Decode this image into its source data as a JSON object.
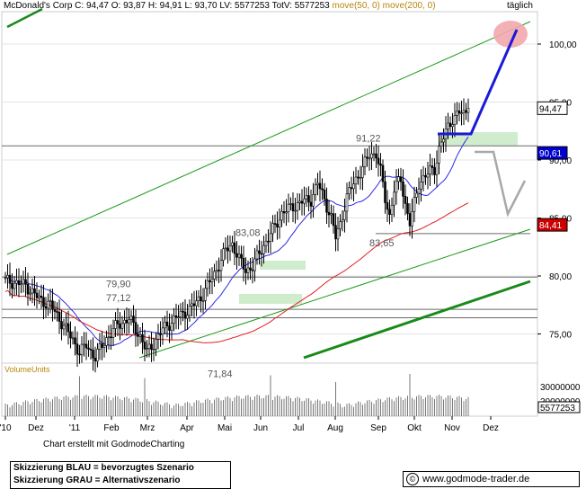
{
  "header": {
    "quote_line": "McDonald's Corp C: 94,47 O: 93,87 H: 94,91 L: 93,70 LV: 5577253 TotV: 5577253",
    "moving_averages": "move(50, 0) move(200, 0)",
    "period": "täglich"
  },
  "chart_data": {
    "type": "candlestick",
    "title": "McDonald's Corp",
    "period": "täglich",
    "x_tick_labels": [
      "'10",
      "Dez",
      "'11",
      "Feb",
      "Mrz",
      "Apr",
      "Mai",
      "Jun",
      "Jul",
      "Aug",
      "Sep",
      "Okt",
      "Nov",
      "Dez"
    ],
    "y_ticks": [
      75,
      80,
      85,
      90,
      95,
      100
    ],
    "y_tick_labels": [
      "75,00",
      "80,00",
      "85,00",
      "90,00",
      "95,00",
      "100,00"
    ],
    "ylim": [
      72,
      102.5
    ],
    "grid": "horizontal",
    "last_close": 94.47,
    "price_tags": [
      {
        "label": "94,47",
        "value": 94.47,
        "color": "#ffffff"
      },
      {
        "label": "90,61",
        "value": 90.61,
        "color": "#0000cc"
      },
      {
        "label": "84,41",
        "value": 84.41,
        "color": "#cc0000"
      }
    ],
    "level_labels": [
      {
        "label": "91,22",
        "value": 91.22
      },
      {
        "label": "83,08",
        "value": 83.08
      },
      {
        "label": "83,65",
        "value": 83.65
      },
      {
        "label": "79,90",
        "value": 79.9
      },
      {
        "label": "77,12",
        "value": 77.12
      },
      {
        "label": "71,84",
        "value": 71.84
      }
    ],
    "horizontal_levels": [
      91.22,
      83.65,
      79.9,
      77.12,
      76.4
    ],
    "price_path": [
      [
        0,
        79.6
      ],
      [
        9,
        79.2
      ],
      [
        15,
        78.0
      ],
      [
        20,
        77.5
      ],
      [
        25,
        76.0
      ],
      [
        30,
        74.5
      ],
      [
        33,
        73.4
      ],
      [
        36,
        74.0
      ],
      [
        40,
        73.0
      ],
      [
        45,
        74.6
      ],
      [
        50,
        75.8
      ],
      [
        55,
        76.3
      ],
      [
        60,
        74.8
      ],
      [
        63,
        73.4
      ],
      [
        66,
        74.2
      ],
      [
        70,
        75.4
      ],
      [
        76,
        76.4
      ],
      [
        82,
        77.1
      ],
      [
        88,
        78.4
      ],
      [
        93,
        80.2
      ],
      [
        98,
        82.2
      ],
      [
        101,
        82.8
      ],
      [
        104,
        81.4
      ],
      [
        107,
        80.5
      ],
      [
        110,
        80.8
      ],
      [
        113,
        82.0
      ],
      [
        118,
        83.6
      ],
      [
        123,
        85.4
      ],
      [
        128,
        86.0
      ],
      [
        132,
        86.4
      ],
      [
        136,
        86.6
      ],
      [
        139,
        88.0
      ],
      [
        142,
        86.6
      ],
      [
        145,
        85.0
      ],
      [
        147,
        83.3
      ],
      [
        149,
        84.5
      ],
      [
        152,
        86.8
      ],
      [
        155,
        88.0
      ],
      [
        158,
        89.0
      ],
      [
        162,
        90.4
      ],
      [
        165,
        90.6
      ],
      [
        167,
        89.0
      ],
      [
        169,
        86.6
      ],
      [
        171,
        85.2
      ],
      [
        173,
        87.5
      ],
      [
        176,
        88.3
      ],
      [
        178,
        86.2
      ],
      [
        180,
        84.6
      ],
      [
        182,
        86.2
      ],
      [
        184,
        88.0
      ],
      [
        186,
        88.5
      ],
      [
        189,
        89.0
      ],
      [
        191,
        89.2
      ],
      [
        193,
        91.0
      ],
      [
        196,
        92.4
      ],
      [
        199,
        93.6
      ],
      [
        202,
        94.1
      ],
      [
        204,
        93.9
      ],
      [
        206,
        94.47
      ]
    ],
    "volume": {
      "label": "VolumeUnits",
      "y_tick_labels": [
        "30000000",
        "20000000"
      ],
      "last_value_label": "5577253"
    },
    "annotations": {
      "blue_scenario": "bevorzugtes Szenario",
      "grey_scenario": "Alternativszenario"
    }
  },
  "footer": {
    "note": "Chart erstellt mit GodmodeCharting",
    "legend_blue": "Skizzierung BLAU = bevorzugtes Szenario",
    "legend_grey": "Skizzierung GRAU = Alternativszenario",
    "url": "www.godmode-trader.de",
    "copyright_symbol": "©"
  }
}
